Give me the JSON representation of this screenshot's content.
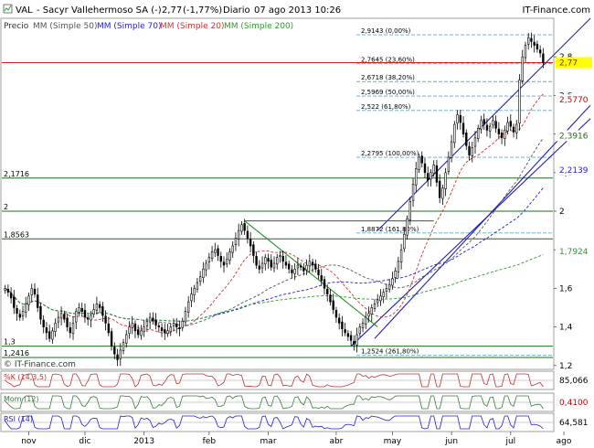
{
  "header": {
    "symbol": "VAL",
    "name": "- Sacyr Vallehermoso SA (-)",
    "last": "2,77",
    "change": "(-1,77%)",
    "period": "Diario",
    "datetime": "07 ago 2013 10:26",
    "brand": "IT-Finance.com"
  },
  "legend": {
    "price": "Precio",
    "ma50": "MM (Simple 50)",
    "ma70": "MM (Simple 70)",
    "ma20": "MM (Simple 20)",
    "ma200": "MM (Simple 200)"
  },
  "footer": {
    "copyright": "© IT-Finance.com"
  },
  "colors": {
    "price": "#000000",
    "ma50": "#555555",
    "ma70": "#1f1fd0",
    "ma20": "#d03030",
    "ma200": "#2a9a2a",
    "hline": "#1a6e1a",
    "fib": "#5aaad0",
    "channel": "#2020b0",
    "last_line": "#cc0000"
  },
  "chart_data": [
    {
      "type": "candlestick",
      "title": "VAL - Sacyr Vallehermoso SA (-) 2,77 (-1,77%) Diario 07 ago 2013 10:26",
      "x_ticks": [
        "nov",
        "dic",
        "2013",
        "feb",
        "mar",
        "abr",
        "may",
        "jun",
        "jul",
        "ago"
      ],
      "y_ticks": [
        "1,2",
        "1,4",
        "1,6",
        "1,8",
        "2",
        "2,2",
        "2,4",
        "2,6",
        "2,8"
      ],
      "ylim": [
        1.18,
        3.0
      ],
      "close": [
        1.6,
        1.58,
        1.55,
        1.5,
        1.47,
        1.45,
        1.48,
        1.52,
        1.56,
        1.6,
        1.57,
        1.5,
        1.44,
        1.4,
        1.37,
        1.34,
        1.38,
        1.42,
        1.45,
        1.47,
        1.44,
        1.4,
        1.37,
        1.42,
        1.48,
        1.5,
        1.48,
        1.45,
        1.44,
        1.46,
        1.49,
        1.52,
        1.5,
        1.46,
        1.42,
        1.37,
        1.3,
        1.26,
        1.23,
        1.28,
        1.32,
        1.36,
        1.4,
        1.42,
        1.38,
        1.36,
        1.38,
        1.4,
        1.43,
        1.45,
        1.43,
        1.41,
        1.4,
        1.38,
        1.37,
        1.38,
        1.4,
        1.42,
        1.4,
        1.39,
        1.43,
        1.48,
        1.53,
        1.57,
        1.6,
        1.63,
        1.66,
        1.7,
        1.73,
        1.76,
        1.79,
        1.8,
        1.77,
        1.74,
        1.72,
        1.75,
        1.79,
        1.82,
        1.86,
        1.9,
        1.93,
        1.9,
        1.86,
        1.82,
        1.77,
        1.72,
        1.7,
        1.73,
        1.76,
        1.74,
        1.71,
        1.73,
        1.76,
        1.77,
        1.74,
        1.72,
        1.7,
        1.68,
        1.7,
        1.72,
        1.71,
        1.69,
        1.72,
        1.74,
        1.72,
        1.7,
        1.67,
        1.64,
        1.6,
        1.57,
        1.53,
        1.49,
        1.45,
        1.42,
        1.39,
        1.37,
        1.35,
        1.33,
        1.31,
        1.36,
        1.4,
        1.42,
        1.45,
        1.47,
        1.5,
        1.52,
        1.54,
        1.56,
        1.58,
        1.6,
        1.62,
        1.65,
        1.69,
        1.74,
        1.8,
        1.88,
        1.96,
        2.05,
        2.14,
        2.22,
        2.28,
        2.25,
        2.2,
        2.16,
        2.2,
        2.24,
        2.15,
        2.07,
        2.12,
        2.2,
        2.28,
        2.36,
        2.45,
        2.5,
        2.46,
        2.4,
        2.34,
        2.29,
        2.33,
        2.38,
        2.43,
        2.47,
        2.45,
        2.42,
        2.44,
        2.47,
        2.43,
        2.4,
        2.38,
        2.42,
        2.46,
        2.44,
        2.41,
        2.45,
        2.68,
        2.8,
        2.86,
        2.9,
        2.88,
        2.86,
        2.84,
        2.82,
        2.77
      ]
    },
    {
      "type": "line",
      "title": "%K",
      "name": "%K (14,3,5)",
      "last_value": "85,066"
    },
    {
      "type": "bar",
      "title": "Mom",
      "name": "Mom (12)",
      "last_value": "0,4100"
    },
    {
      "type": "line",
      "title": "RSI",
      "name": "RSI (14)",
      "last_value": "64,581"
    }
  ],
  "levels": {
    "hlines": [
      {
        "label": "2,1716",
        "value": 2.1716
      },
      {
        "label": "2",
        "value": 2.0
      },
      {
        "label": "1,8563",
        "value": 1.8563
      },
      {
        "label": "1,3",
        "value": 1.3
      },
      {
        "label": "1,2416",
        "value": 1.2416
      }
    ],
    "fib": [
      {
        "label": "2,9143 (0,00%)",
        "value": 2.9143
      },
      {
        "label": "2,7645 (23,60%)",
        "value": 2.7645
      },
      {
        "label": "2,6718 (38,20%)",
        "value": 2.6718
      },
      {
        "label": "2,5969 (50,00%)",
        "value": 2.5969
      },
      {
        "label": "2,522 (61,80%)",
        "value": 2.522
      },
      {
        "label": "2,2795 (100,00%)",
        "value": 2.2795
      },
      {
        "label": "1,8872 (161,80%)",
        "value": 1.8872
      },
      {
        "label": "1,2524 (261,80%)",
        "value": 1.2524
      }
    ],
    "right_labels": [
      {
        "label": "2,77",
        "value": 2.77,
        "color": "#cc0000",
        "bg": "#ffff00"
      },
      {
        "label": "2,5770",
        "value": 2.577,
        "color": "#cc0000",
        "bg": "#ffffff"
      },
      {
        "label": "2,3916",
        "value": 2.3916,
        "color": "#1a6e1a",
        "bg": "#ffffff"
      },
      {
        "label": "2,2139",
        "value": 2.2139,
        "color": "#1f1fd0",
        "bg": "#ffffff"
      },
      {
        "label": "1,7924",
        "value": 1.7924,
        "color": "#2a9a2a",
        "bg": "#ffffff"
      }
    ]
  }
}
